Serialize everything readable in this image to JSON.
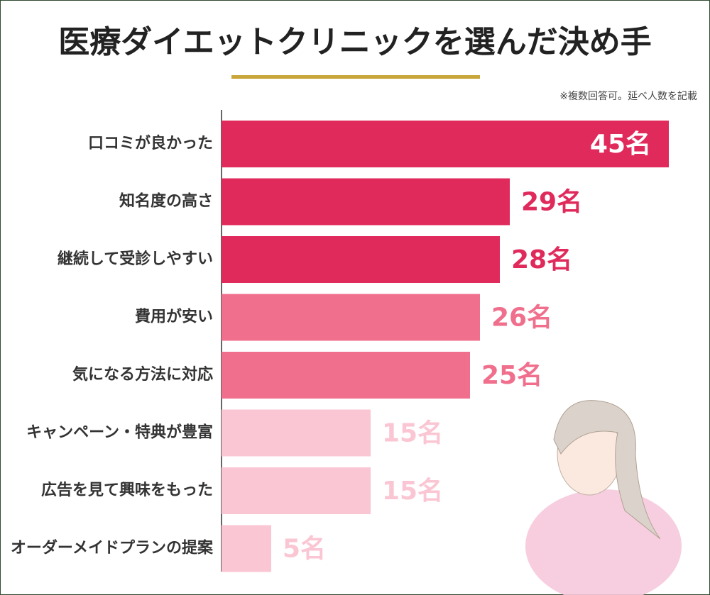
{
  "chart_data": {
    "type": "bar",
    "orientation": "horizontal",
    "title": "医療ダイエットクリニックを選んだ決め手",
    "note": "※複数回答可。延べ人数を記載",
    "categories": [
      "口コミが良かった",
      "知名度の高さ",
      "継続して受診しやすい",
      "費用が安い",
      "気になる方法に対応",
      "キャンペーン・特典が豊富",
      "広告を見て興味をもった",
      "オーダーメイドプランの提案"
    ],
    "values": [
      45,
      29,
      28,
      26,
      25,
      15,
      15,
      5
    ],
    "value_labels": [
      "45名",
      "29名",
      "28名",
      "26名",
      "25名",
      "15名",
      "15名",
      "5名"
    ],
    "colors": [
      "#e02a5b",
      "#e02a5b",
      "#e02a5b",
      "#f06f8d",
      "#f06f8d",
      "#fbc6d3",
      "#fbc6d3",
      "#fbc6d3"
    ]
  }
}
